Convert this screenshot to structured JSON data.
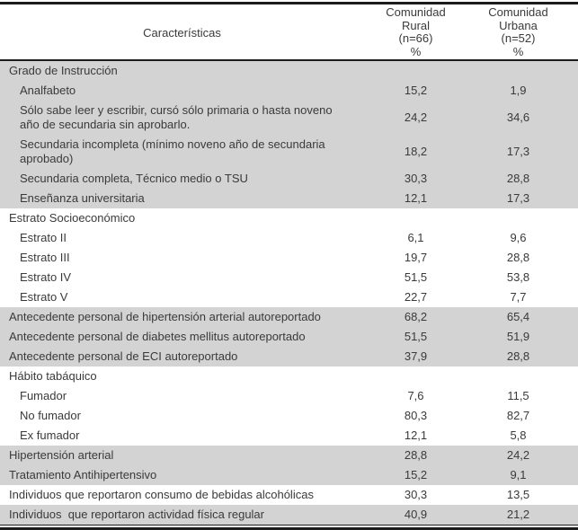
{
  "table": {
    "header": {
      "characteristics": "Características",
      "rural": {
        "lines": [
          "Comunidad",
          "Rural",
          "(n=66)",
          "%"
        ]
      },
      "urbana": {
        "lines": [
          "Comunidad",
          "Urbana",
          "(n=52)",
          "%"
        ]
      }
    },
    "rows": [
      {
        "label": "Grado de Instrucción",
        "rural": "",
        "urbana": "",
        "indent": 0,
        "shaded": true,
        "section": true
      },
      {
        "label": "Analfabeto",
        "rural": "15,2",
        "urbana": "1,9",
        "indent": 1,
        "shaded": true,
        "section": false
      },
      {
        "label": "Sólo sabe leer y escribir, cursó sólo primaria o hasta noveno año de secundaria sin aprobarlo.",
        "rural": "24,2",
        "urbana": "34,6",
        "indent": 1,
        "shaded": true,
        "section": false
      },
      {
        "label": "Secundaria incompleta (mínimo noveno año de secundaria aprobado)",
        "rural": "18,2",
        "urbana": "17,3",
        "indent": 1,
        "shaded": true,
        "section": false
      },
      {
        "label": "Secundaria completa, Técnico medio o TSU",
        "rural": "30,3",
        "urbana": "28,8",
        "indent": 1,
        "shaded": true,
        "section": false
      },
      {
        "label": "Enseñanza universitaria",
        "rural": "12,1",
        "urbana": "17,3",
        "indent": 1,
        "shaded": true,
        "section": false
      },
      {
        "label": "Estrato Socioeconómico",
        "rural": "",
        "urbana": "",
        "indent": 0,
        "shaded": false,
        "section": true
      },
      {
        "label": "Estrato II",
        "rural": "6,1",
        "urbana": "9,6",
        "indent": 1,
        "shaded": false,
        "section": false
      },
      {
        "label": "Estrato III",
        "rural": "19,7",
        "urbana": "28,8",
        "indent": 1,
        "shaded": false,
        "section": false
      },
      {
        "label": "Estrato IV",
        "rural": "51,5",
        "urbana": "53,8",
        "indent": 1,
        "shaded": false,
        "section": false
      },
      {
        "label": "Estrato V",
        "rural": "22,7",
        "urbana": "7,7",
        "indent": 1,
        "shaded": false,
        "section": false
      },
      {
        "label": "Antecedente personal de hipertensión arterial autoreportado",
        "rural": "68,2",
        "urbana": "65,4",
        "indent": 0,
        "shaded": true,
        "section": false
      },
      {
        "label": "Antecedente personal de diabetes mellitus autoreportado",
        "rural": "51,5",
        "urbana": "51,9",
        "indent": 0,
        "shaded": true,
        "section": false
      },
      {
        "label": "Antecedente personal de ECI autoreportado",
        "rural": "37,9",
        "urbana": "28,8",
        "indent": 0,
        "shaded": true,
        "section": false
      },
      {
        "label": "Hábito tabáquico",
        "rural": "",
        "urbana": "",
        "indent": 0,
        "shaded": false,
        "section": true
      },
      {
        "label": "Fumador",
        "rural": "7,6",
        "urbana": "11,5",
        "indent": 1,
        "shaded": false,
        "section": false
      },
      {
        "label": "No fumador",
        "rural": "80,3",
        "urbana": "82,7",
        "indent": 1,
        "shaded": false,
        "section": false
      },
      {
        "label": "Ex fumador",
        "rural": "12,1",
        "urbana": "5,8",
        "indent": 1,
        "shaded": false,
        "section": false
      },
      {
        "label": "Hipertensión arterial",
        "rural": "28,8",
        "urbana": "24,2",
        "indent": 0,
        "shaded": true,
        "section": false
      },
      {
        "label": "Tratamiento Antihipertensivo",
        "rural": "15,2",
        "urbana": "9,1",
        "indent": 0,
        "shaded": true,
        "section": false
      },
      {
        "label": "Individuos que reportaron consumo de bebidas alcohólicas",
        "rural": "30,3",
        "urbana": "13,5",
        "indent": 0,
        "shaded": false,
        "section": false
      },
      {
        "label": "Individuos  que reportaron actividad física regular",
        "rural": "40,9",
        "urbana": "21,2",
        "indent": 0,
        "shaded": true,
        "section": false
      }
    ],
    "colors": {
      "shaded_row_bg": "#d3d3d3",
      "rule": "#1c1c1c",
      "text": "#3a3a3a"
    }
  }
}
